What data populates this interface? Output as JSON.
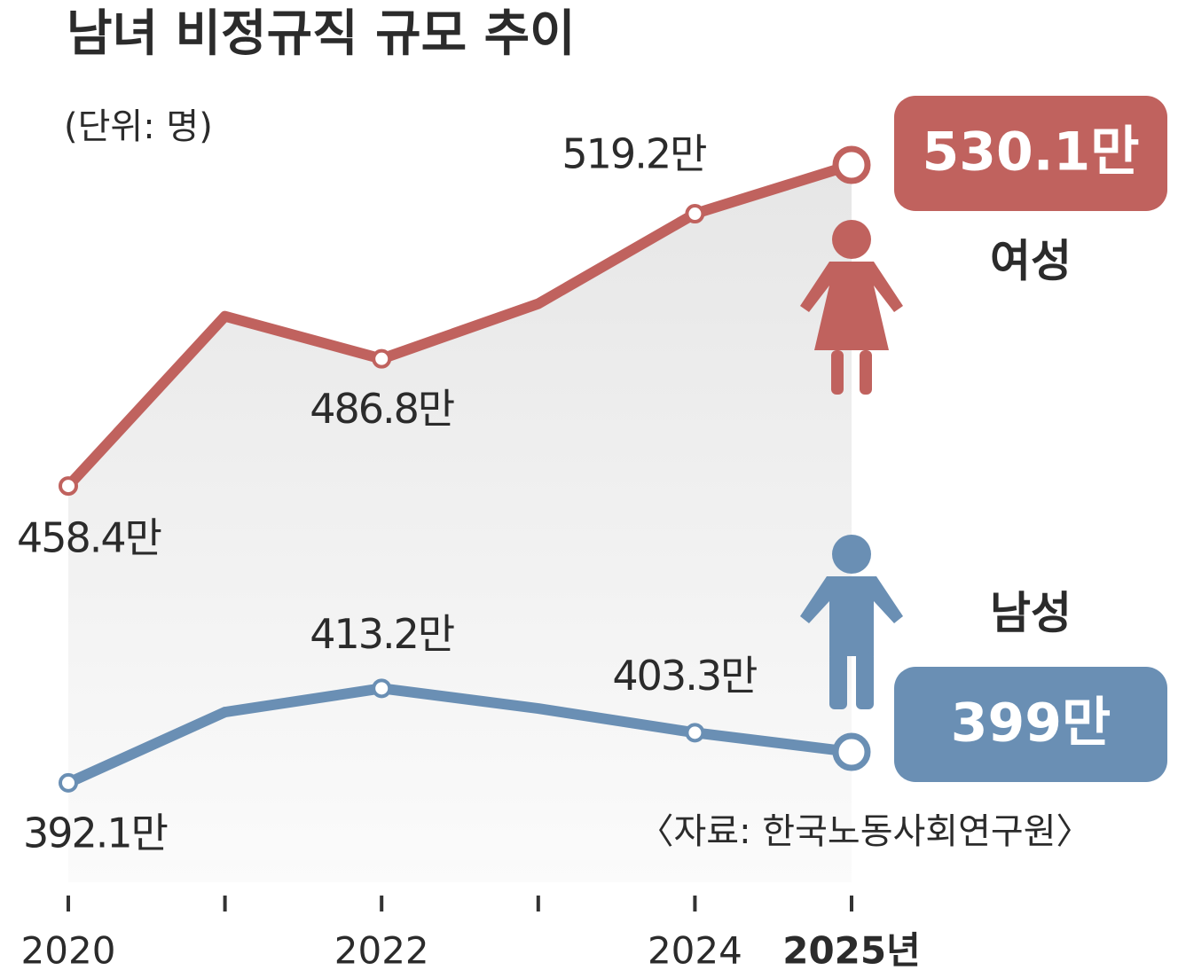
{
  "chart_data": {
    "type": "line",
    "title": "남녀 비정규직 규모 추이",
    "subtitle": "(단위: 명)",
    "source": "〈자료: 한국노동사회연구원〉",
    "categories": [
      "2020",
      null,
      "2022",
      null,
      "2024",
      "2025년"
    ],
    "series": [
      {
        "name": "여성",
        "color": "#c0625e",
        "values": [
          458.4,
          496.3,
          486.8,
          499.1,
          519.2,
          530.1
        ],
        "value_labels": [
          "458.4만",
          null,
          "486.8만",
          null,
          "519.2만",
          "530.1만"
        ]
      },
      {
        "name": "남성",
        "color": "#6a8fb4",
        "values": [
          392.1,
          407.9,
          413.2,
          408.7,
          403.3,
          399
        ],
        "value_labels": [
          "392.1만",
          null,
          "413.2만",
          null,
          "403.3만",
          "399만"
        ]
      }
    ],
    "ylim": [
      380,
      540
    ]
  }
}
